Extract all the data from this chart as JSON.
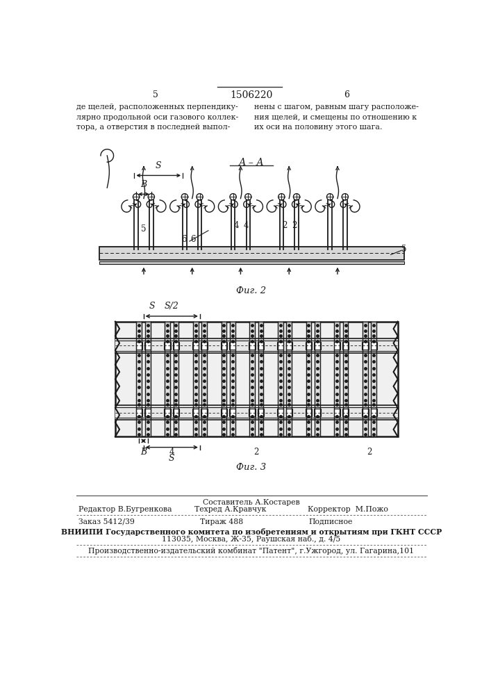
{
  "page_number_left": "5",
  "page_number_center": "1506220",
  "page_number_right": "6",
  "text_left": "де щелей, расположенных перпендику-\nлярно продольной оси газового коллек-\nтора, а отверстия в последней выпол-",
  "text_right": "нены с шагом, равным шагу расположе-\nния щелей, и смещены по отношению к\nих оси на половину этого шага.",
  "fig2_label": "А – А",
  "fig2_caption": "Фиг. 2",
  "fig3_caption": "Фиг. 3",
  "editor_line1": "Составитель А.Костарев",
  "editor_line2_left": "Редактор В.Бугренкова",
  "editor_line2_mid": "Техред А.Кравчук",
  "editor_line2_right": "Корректор  М.Пожо",
  "order_left": "Заказ 5412/39",
  "order_mid": "Тираж 488",
  "order_right": "Подписное",
  "vnipi_line1": "ВНИИПИ Государственного комитета по изобретениям и открытиям при ГКНТ СССР",
  "vnipi_line2": "113035, Москва, Ж-35, Раушская наб., д. 4/5",
  "production_line": "Производственно-издательский комбинат \"Патент\", г.Ужгород, ул. Гагарина,101",
  "bg_color": "#ffffff",
  "text_color": "#1a1a1a",
  "line_color": "#333333",
  "fig_line_color": "#1a1a1a"
}
